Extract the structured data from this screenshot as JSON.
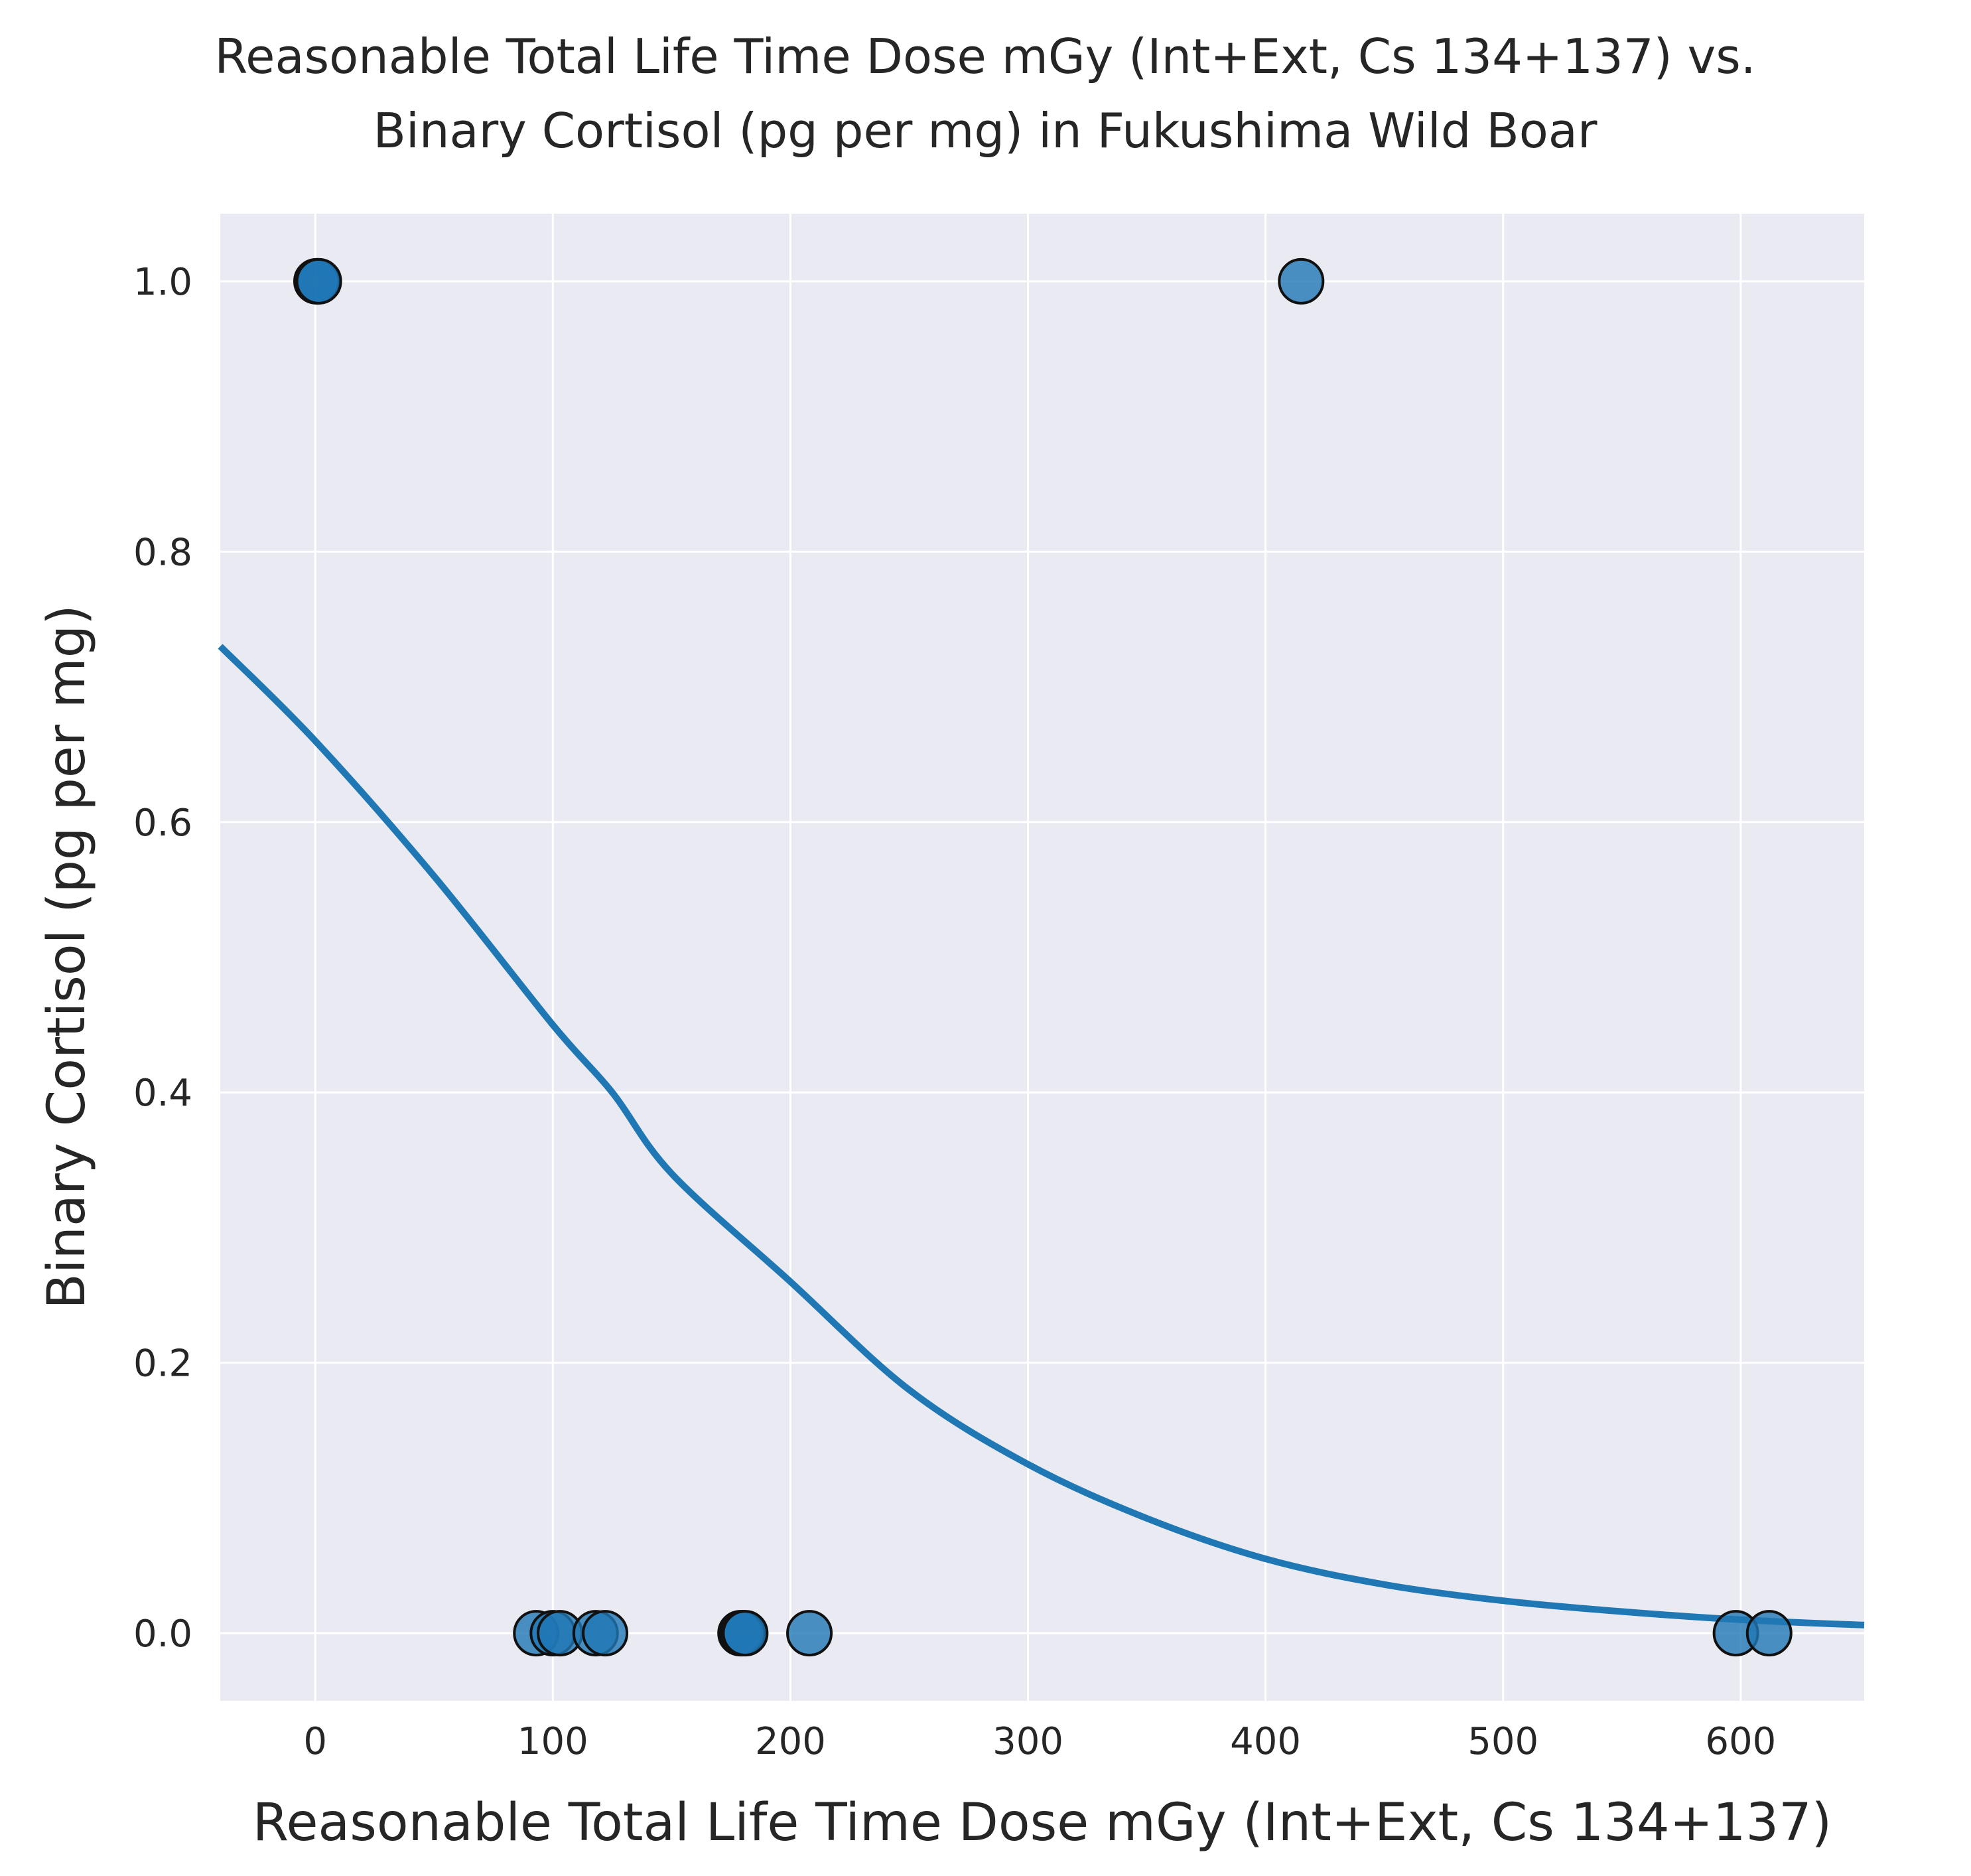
{
  "chart_data": {
    "type": "scatter",
    "title_lines": [
      "Reasonable Total Life Time Dose mGy (Int+Ext, Cs 134+137) vs.",
      "Binary Cortisol (pg per mg) in Fukushima Wild Boar"
    ],
    "xlabel": "Reasonable Total Life Time Dose mGy (Int+Ext, Cs 134+137)",
    "ylabel": "Binary Cortisol (pg per mg)",
    "xlim": [
      -40,
      652
    ],
    "ylim": [
      -0.05,
      1.05
    ],
    "x_ticks": [
      0,
      100,
      200,
      300,
      400,
      500,
      600
    ],
    "x_tick_labels": [
      "0",
      "100",
      "200",
      "300",
      "400",
      "500",
      "600"
    ],
    "y_ticks": [
      0.0,
      0.2,
      0.4,
      0.6,
      0.8,
      1.0
    ],
    "y_tick_labels": [
      "0.0",
      "0.2",
      "0.4",
      "0.6",
      "0.8",
      "1.0"
    ],
    "grid": true,
    "colors": {
      "background": "#eaeaf2",
      "grid": "#ffffff",
      "marker": "#1f77b4",
      "marker_edge": "#111111",
      "line": "#1f77b4"
    },
    "points": [
      {
        "x": 0.5,
        "y": 1
      },
      {
        "x": 1.0,
        "y": 1
      },
      {
        "x": 1.5,
        "y": 1
      },
      {
        "x": 415,
        "y": 1
      },
      {
        "x": 93,
        "y": 0
      },
      {
        "x": 100,
        "y": 0
      },
      {
        "x": 103,
        "y": 0
      },
      {
        "x": 118,
        "y": 0
      },
      {
        "x": 122,
        "y": 0
      },
      {
        "x": 179,
        "y": 0
      },
      {
        "x": 180,
        "y": 0
      },
      {
        "x": 181,
        "y": 0
      },
      {
        "x": 208,
        "y": 0
      },
      {
        "x": 598,
        "y": 0
      },
      {
        "x": 612,
        "y": 0
      }
    ],
    "fit_curve": {
      "type": "logistic",
      "x": [
        -40,
        0,
        50,
        100,
        125,
        150,
        200,
        250,
        300,
        350,
        400,
        450,
        500,
        550,
        600,
        652
      ],
      "y": [
        0.73,
        0.66,
        0.56,
        0.45,
        0.4,
        0.34,
        0.26,
        0.18,
        0.125,
        0.085,
        0.055,
        0.036,
        0.024,
        0.016,
        0.01,
        0.006
      ]
    }
  }
}
